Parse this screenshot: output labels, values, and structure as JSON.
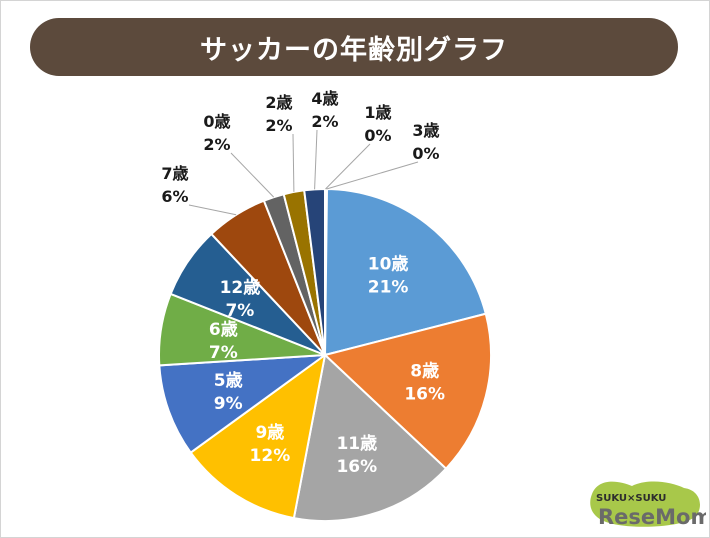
{
  "title": "サッカーの年齢別グラフ",
  "chart_data": {
    "type": "pie",
    "title": "サッカーの年齢別グラフ",
    "slices": [
      {
        "label": "10歳",
        "value": 21,
        "percent": "21%",
        "color": "#5b9bd5",
        "inside": true
      },
      {
        "label": "8歳",
        "value": 16,
        "percent": "16%",
        "color": "#ed7d31",
        "inside": true
      },
      {
        "label": "11歳",
        "value": 16,
        "percent": "16%",
        "color": "#a5a5a5",
        "inside": true
      },
      {
        "label": "9歳",
        "value": 12,
        "percent": "12%",
        "color": "#ffc000",
        "inside": true
      },
      {
        "label": "5歳",
        "value": 9,
        "percent": "9%",
        "color": "#4472c4",
        "inside": true
      },
      {
        "label": "6歳",
        "value": 7,
        "percent": "7%",
        "color": "#70ad47",
        "inside": true
      },
      {
        "label": "12歳",
        "value": 7,
        "percent": "7%",
        "color": "#255e91",
        "inside": true
      },
      {
        "label": "7歳",
        "value": 6,
        "percent": "6%",
        "color": "#9e480e",
        "inside": false
      },
      {
        "label": "0歳",
        "value": 2,
        "percent": "2%",
        "color": "#636363",
        "inside": false
      },
      {
        "label": "2歳",
        "value": 2,
        "percent": "2%",
        "color": "#997300",
        "inside": false
      },
      {
        "label": "4歳",
        "value": 2,
        "percent": "2%",
        "color": "#264478",
        "inside": false
      },
      {
        "label": "1歳",
        "value": 0,
        "percent": "0%",
        "color": "#43682b",
        "inside": false
      },
      {
        "label": "3歳",
        "value": 0,
        "percent": "0%",
        "color": "#7cafdd",
        "inside": false
      }
    ]
  },
  "logo": {
    "top_text": "SUKU×SUKU",
    "main_text": "ReseMom",
    "accent_color": "#a8c84a"
  }
}
